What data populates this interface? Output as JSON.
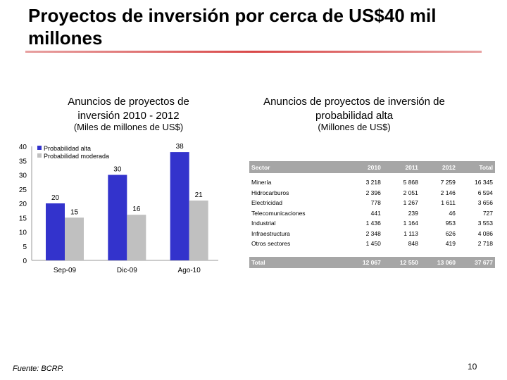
{
  "slide": {
    "title": "Proyectos de inversión por cerca de US$40 mil millones",
    "footer": "Fuente: BCRP.",
    "page_number": "10"
  },
  "left_panel": {
    "title": "Anuncios de proyectos de inversión 2010 - 2012",
    "unit": "(Miles de millones de US$)"
  },
  "right_panel": {
    "title": "Anuncios de proyectos de inversión de probabilidad alta",
    "unit": "(Millones de US$)"
  },
  "colors": {
    "series_alta": "#3333cc",
    "series_moderada": "#c0c0c0",
    "table_header_bg": "#a6a6a6"
  },
  "chart_data": {
    "type": "bar",
    "categories": [
      "Sep-09",
      "Dic-09",
      "Ago-10"
    ],
    "series": [
      {
        "name": "Probabilidad alta",
        "values": [
          20,
          30,
          38
        ]
      },
      {
        "name": "Probabilidad moderada",
        "values": [
          15,
          16,
          21
        ]
      }
    ],
    "y_ticks": [
      0,
      5,
      10,
      15,
      20,
      25,
      30,
      35,
      40
    ],
    "ylim": [
      0,
      40
    ],
    "legend": "top-left",
    "title": "",
    "xlabel": "",
    "ylabel": ""
  },
  "table": {
    "headers": [
      "Sector",
      "2010",
      "2011",
      "2012",
      "Total"
    ],
    "rows": [
      [
        "Minería",
        "3 218",
        "5 868",
        "7 259",
        "16 345"
      ],
      [
        "Hidrocarburos",
        "2 396",
        "2 051",
        "2 146",
        "6 594"
      ],
      [
        "Electricidad",
        "778",
        "1 267",
        "1 611",
        "3 656"
      ],
      [
        "Telecomunicaciones",
        "441",
        "239",
        "46",
        "727"
      ],
      [
        "Industrial",
        "1 436",
        "1 164",
        "953",
        "3 553"
      ],
      [
        "Infraestructura",
        "2 348",
        "1 113",
        "626",
        "4 086"
      ],
      [
        "Otros sectores",
        "1 450",
        "848",
        "419",
        "2 718"
      ]
    ],
    "total": [
      "Total",
      "12 067",
      "12 550",
      "13 060",
      "37 677"
    ]
  }
}
